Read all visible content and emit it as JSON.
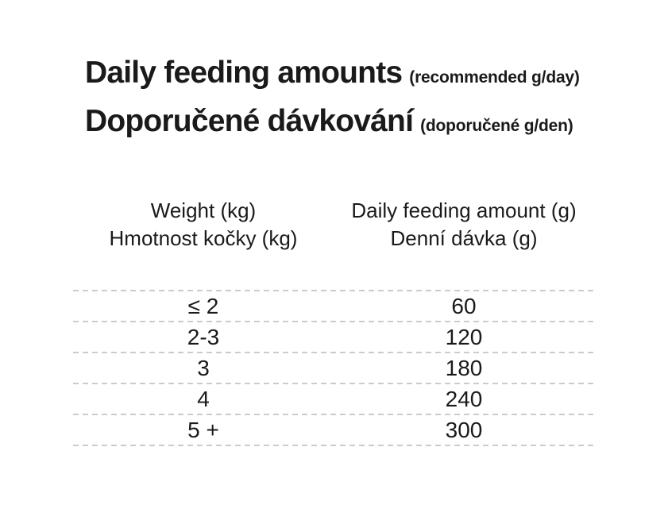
{
  "title": {
    "primary": "Daily feeding amounts",
    "primary_note": "(recommended g/day)",
    "secondary": "Doporučené dávkování",
    "secondary_note": "(doporučené g/den)"
  },
  "table": {
    "columns": [
      {
        "label_en": "Weight (kg)",
        "label_cs": "Hmotnost kočky (kg)"
      },
      {
        "label_en": "Daily feeding amount (g)",
        "label_cs": "Denní dávka (g)"
      }
    ],
    "rows": [
      {
        "weight": "≤ 2",
        "amount": "60"
      },
      {
        "weight": "2-3",
        "amount": "120"
      },
      {
        "weight": "3",
        "amount": "180"
      },
      {
        "weight": "4",
        "amount": "240"
      },
      {
        "weight": "5 +",
        "amount": "300"
      }
    ]
  },
  "chart_data": {
    "type": "table",
    "title": "Daily feeding amounts (recommended g/day) / Doporučené dávkování (doporučené g/den)",
    "columns": [
      "Weight (kg) / Hmotnost kočky (kg)",
      "Daily feeding amount (g) / Denní dávka (g)"
    ],
    "rows": [
      [
        "≤ 2",
        "60"
      ],
      [
        "2-3",
        "120"
      ],
      [
        "3",
        "180"
      ],
      [
        "4",
        "240"
      ],
      [
        "5 +",
        "300"
      ]
    ]
  },
  "colors": {
    "text": "#1a1a1a",
    "divider": "#cbcbcb",
    "background": "#ffffff"
  }
}
